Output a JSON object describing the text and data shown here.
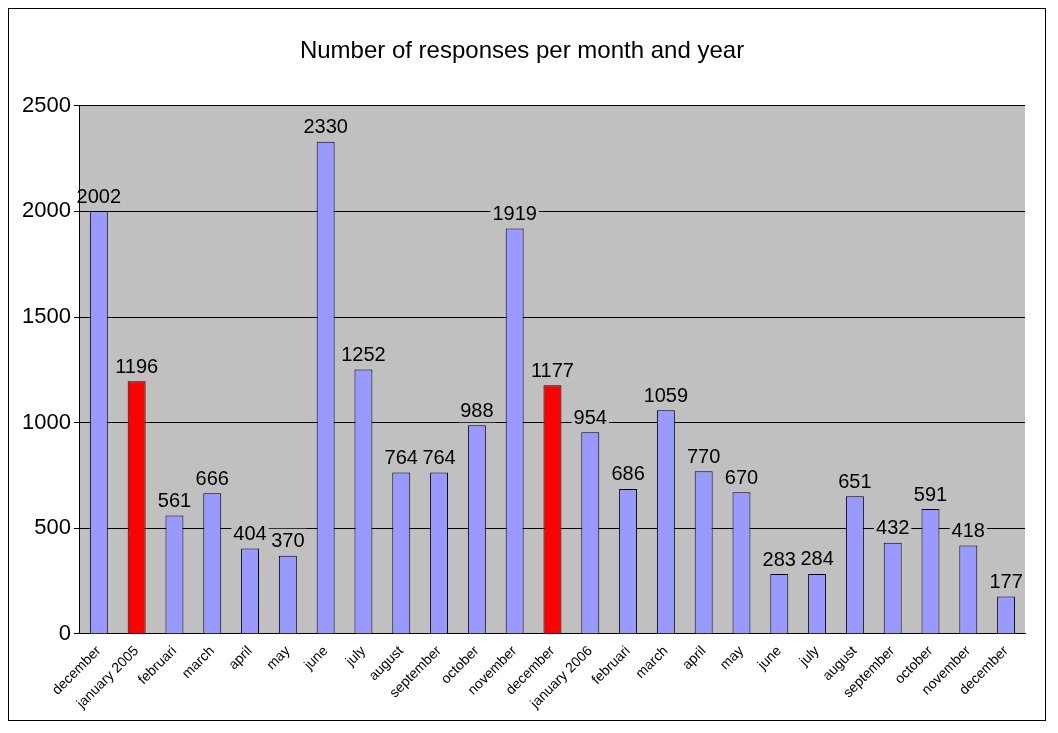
{
  "chart_data": {
    "type": "bar",
    "title": "Number of responses per month and year",
    "categories": [
      "december",
      "january 2005",
      "februari",
      "march",
      "april",
      "may",
      "june",
      "july",
      "august",
      "september",
      "october",
      "november",
      "december",
      "january 2006",
      "februari",
      "march",
      "april",
      "may",
      "june",
      "july",
      "august",
      "september",
      "october",
      "november",
      "december"
    ],
    "values": [
      2002,
      1196,
      561,
      666,
      404,
      370,
      2330,
      1252,
      764,
      764,
      988,
      1919,
      1177,
      954,
      686,
      1059,
      770,
      670,
      283,
      284,
      651,
      432,
      591,
      418,
      177
    ],
    "colors": [
      "#9999ff",
      "#ff0000",
      "#9999ff",
      "#9999ff",
      "#9999ff",
      "#9999ff",
      "#9999ff",
      "#9999ff",
      "#9999ff",
      "#9999ff",
      "#9999ff",
      "#9999ff",
      "#ff0000",
      "#9999ff",
      "#9999ff",
      "#9999ff",
      "#9999ff",
      "#9999ff",
      "#9999ff",
      "#9999ff",
      "#9999ff",
      "#9999ff",
      "#9999ff",
      "#9999ff",
      "#9999ff"
    ],
    "ylim": [
      0,
      2500
    ],
    "yticks": [
      0,
      500,
      1000,
      1500,
      2000,
      2500
    ],
    "grid": "y",
    "data_labels": true
  }
}
